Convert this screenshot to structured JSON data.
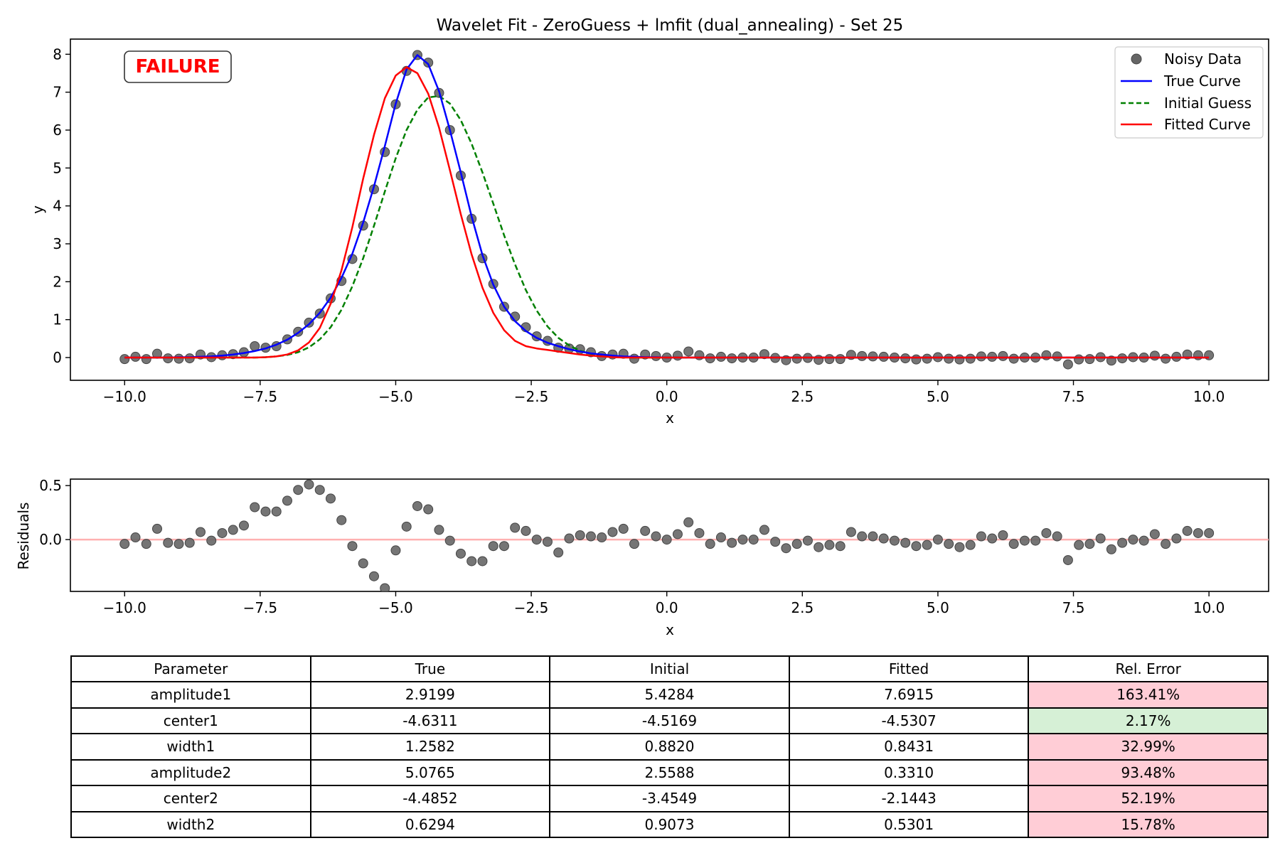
{
  "title": "Wavelet Fit - ZeroGuess + lmfit (dual_annealing) - Set 25",
  "badge": "FAILURE",
  "colors": {
    "noisy": "#666666",
    "true": "#0000ff",
    "initial": "#008000",
    "fitted": "#ff0000",
    "badge": "#ff0000",
    "zero_line": "#ffb0b0"
  },
  "legend": [
    "Noisy Data",
    "True Curve",
    "Initial Guess",
    "Fitted Curve"
  ],
  "chart_data": [
    {
      "type": "line",
      "title": "Wavelet Fit - ZeroGuess + lmfit (dual_annealing) - Set 25",
      "xlabel": "x",
      "ylabel": "y",
      "xlim": [
        -11,
        11.1
      ],
      "ylim": [
        -0.6,
        8.4
      ],
      "xticks": [
        -10,
        -7.5,
        -5,
        -2.5,
        0,
        2.5,
        5,
        7.5,
        10
      ],
      "xtick_labels": [
        "−10.0",
        "−7.5",
        "−5.0",
        "−2.5",
        "0.0",
        "2.5",
        "5.0",
        "7.5",
        "10.0"
      ],
      "yticks": [
        0,
        1,
        2,
        3,
        4,
        5,
        6,
        7,
        8
      ],
      "ytick_labels": [
        "0",
        "1",
        "2",
        "3",
        "4",
        "5",
        "6",
        "7",
        "8"
      ],
      "legend_position": "top-right",
      "grid": false,
      "x_range": [
        -10,
        10
      ],
      "n_points": 101,
      "series": [
        {
          "name": "Noisy Data",
          "style": "markers",
          "y": [
            -0.04,
            0.02,
            -0.04,
            0.1,
            -0.02,
            -0.03,
            -0.02,
            0.08,
            0.01,
            0.06,
            0.09,
            0.14,
            0.3,
            0.26,
            0.3,
            0.48,
            0.68,
            0.92,
            1.16,
            1.56,
            2.02,
            2.6,
            3.48,
            4.44,
            5.42,
            6.68,
            7.56,
            7.98,
            7.78,
            6.98,
            6.0,
            4.8,
            3.66,
            2.62,
            1.94,
            1.34,
            1.08,
            0.8,
            0.56,
            0.44,
            0.26,
            0.24,
            0.22,
            0.14,
            0.04,
            0.08,
            0.1,
            -0.03,
            0.08,
            0.04,
            0.0,
            0.05,
            0.16,
            0.06,
            -0.02,
            0.02,
            -0.02,
            0.0,
            0.0,
            0.09,
            -0.01,
            -0.07,
            -0.03,
            -0.01,
            -0.06,
            -0.04,
            -0.04,
            0.07,
            0.04,
            0.03,
            0.02,
            0.0,
            -0.02,
            -0.05,
            -0.03,
            0.01,
            -0.03,
            -0.05,
            -0.03,
            0.03,
            0.02,
            0.04,
            -0.03,
            0.0,
            0.0,
            0.06,
            0.03,
            -0.18,
            -0.05,
            -0.04,
            0.01,
            -0.08,
            -0.02,
            0.01,
            0.0,
            0.05,
            -0.03,
            0.02,
            0.08,
            0.06,
            0.06
          ]
        },
        {
          "name": "True Curve",
          "style": "solid",
          "y": [
            0.0,
            0.0,
            0.0,
            0.0,
            0.0,
            0.01,
            0.01,
            0.02,
            0.03,
            0.05,
            0.08,
            0.12,
            0.17,
            0.24,
            0.34,
            0.47,
            0.65,
            0.88,
            1.18,
            1.58,
            2.1,
            2.74,
            3.56,
            4.52,
            5.58,
            6.7,
            7.6,
            7.98,
            7.74,
            7.02,
            6.0,
            4.88,
            3.72,
            2.7,
            1.92,
            1.34,
            0.96,
            0.7,
            0.52,
            0.39,
            0.3,
            0.22,
            0.16,
            0.11,
            0.08,
            0.05,
            0.03,
            0.02,
            0.01,
            0.01,
            0.0,
            0.0,
            0.0,
            0.0,
            0.0,
            0.0,
            0.0,
            0.0,
            0.0,
            0.0,
            0.0,
            0.0,
            0.0,
            0.0,
            0.0,
            0.0,
            0.0,
            0.0,
            0.0,
            0.0,
            0.0,
            0.0,
            0.0,
            0.0,
            0.0,
            0.0,
            0.0,
            0.0,
            0.0,
            0.0,
            0.0,
            0.0,
            0.0,
            0.0,
            0.0,
            0.0,
            0.0,
            0.0,
            0.0,
            0.0,
            0.0,
            0.0,
            0.0,
            0.0,
            0.0,
            0.0,
            0.0,
            0.0,
            0.0,
            0.0,
            0.0
          ]
        },
        {
          "name": "Initial Guess",
          "style": "dashed",
          "y": [
            0.0,
            0.0,
            0.0,
            0.0,
            0.0,
            0.0,
            0.0,
            0.0,
            0.0,
            0.0,
            0.0,
            0.0,
            0.0,
            0.01,
            0.03,
            0.07,
            0.14,
            0.27,
            0.48,
            0.8,
            1.26,
            1.88,
            2.62,
            3.48,
            4.38,
            5.26,
            6.0,
            6.54,
            6.86,
            6.9,
            6.7,
            6.26,
            5.64,
            4.88,
            4.06,
            3.22,
            2.46,
            1.78,
            1.24,
            0.82,
            0.52,
            0.32,
            0.18,
            0.1,
            0.05,
            0.02,
            0.01,
            0.0,
            0.0,
            0.0,
            0.0,
            0.0,
            0.0,
            0.0,
            0.0,
            0.0,
            0.0,
            0.0,
            0.0,
            0.0,
            0.0,
            0.0,
            0.0,
            0.0,
            0.0,
            0.0,
            0.0,
            0.0,
            0.0,
            0.0,
            0.0,
            0.0,
            0.0,
            0.0,
            0.0,
            0.0,
            0.0,
            0.0,
            0.0,
            0.0,
            0.0,
            0.0,
            0.0,
            0.0,
            0.0,
            0.0,
            0.0,
            0.0,
            0.0,
            0.0,
            0.0,
            0.0,
            0.0,
            0.0,
            0.0,
            0.0,
            0.0,
            0.0,
            0.0,
            0.0,
            0.0
          ]
        },
        {
          "name": "Fitted Curve",
          "style": "solid",
          "y": [
            0.0,
            0.0,
            0.0,
            0.0,
            0.0,
            0.0,
            0.0,
            0.0,
            0.0,
            0.0,
            0.0,
            0.0,
            0.0,
            0.01,
            0.03,
            0.08,
            0.19,
            0.4,
            0.78,
            1.42,
            2.3,
            3.44,
            4.72,
            5.88,
            6.84,
            7.44,
            7.66,
            7.5,
            6.96,
            6.06,
            4.94,
            3.78,
            2.72,
            1.84,
            1.18,
            0.72,
            0.44,
            0.3,
            0.24,
            0.2,
            0.16,
            0.12,
            0.08,
            0.05,
            0.03,
            0.01,
            0.0,
            0.0,
            0.0,
            0.0,
            0.0,
            0.0,
            0.0,
            0.0,
            0.0,
            0.0,
            0.0,
            0.0,
            0.0,
            0.0,
            0.0,
            0.0,
            0.0,
            0.0,
            0.0,
            0.0,
            0.0,
            0.0,
            0.0,
            0.0,
            0.0,
            0.0,
            0.0,
            0.0,
            0.0,
            0.0,
            0.0,
            0.0,
            0.0,
            0.0,
            0.0,
            0.0,
            0.0,
            0.0,
            0.0,
            0.0,
            0.0,
            0.0,
            0.0,
            0.0,
            0.0,
            0.0,
            0.0,
            0.0,
            0.0,
            0.0,
            0.0,
            0.0,
            0.0,
            0.0,
            0.0
          ]
        }
      ]
    },
    {
      "type": "scatter",
      "xlabel": "x",
      "ylabel": "Residuals",
      "xlim": [
        -11,
        11.1
      ],
      "ylim": [
        -0.48,
        0.56
      ],
      "xticks": [
        -10,
        -7.5,
        -5,
        -2.5,
        0,
        2.5,
        5,
        7.5,
        10
      ],
      "xtick_labels": [
        "−10.0",
        "−7.5",
        "−5.0",
        "−2.5",
        "0.0",
        "2.5",
        "5.0",
        "7.5",
        "10.0"
      ],
      "yticks": [
        0,
        0.5
      ],
      "ytick_labels": [
        "0.0",
        "0.5"
      ],
      "hline": 0,
      "x_range": [
        -10,
        10
      ],
      "n_points": 101,
      "series": [
        {
          "name": "Residuals",
          "y": [
            -0.04,
            0.02,
            -0.04,
            0.1,
            -0.03,
            -0.04,
            -0.03,
            0.07,
            -0.01,
            0.06,
            0.09,
            0.13,
            0.3,
            0.26,
            0.26,
            0.36,
            0.46,
            0.51,
            0.46,
            0.38,
            0.18,
            -0.06,
            -0.22,
            -0.34,
            -0.45,
            -0.1,
            0.12,
            0.31,
            0.28,
            0.09,
            -0.01,
            -0.13,
            -0.2,
            -0.2,
            -0.06,
            -0.06,
            0.11,
            0.08,
            0.0,
            -0.02,
            -0.12,
            0.01,
            0.04,
            0.03,
            0.02,
            0.07,
            0.1,
            -0.04,
            0.08,
            0.03,
            0.0,
            0.05,
            0.16,
            0.06,
            -0.04,
            0.02,
            -0.03,
            0.0,
            0.0,
            0.09,
            -0.02,
            -0.08,
            -0.04,
            -0.01,
            -0.07,
            -0.05,
            -0.06,
            0.07,
            0.03,
            0.03,
            0.01,
            -0.01,
            -0.03,
            -0.06,
            -0.05,
            0.0,
            -0.04,
            -0.07,
            -0.05,
            0.03,
            0.01,
            0.04,
            -0.04,
            -0.01,
            -0.01,
            0.06,
            0.03,
            -0.19,
            -0.05,
            -0.04,
            0.01,
            -0.09,
            -0.03,
            0.0,
            -0.01,
            0.05,
            -0.04,
            0.01,
            0.08,
            0.06,
            0.06
          ]
        }
      ]
    }
  ],
  "table": {
    "headers": [
      "Parameter",
      "True",
      "Initial",
      "Fitted",
      "Rel. Error"
    ],
    "rows": [
      {
        "param": "amplitude1",
        "true": "2.9199",
        "initial": "5.4284",
        "fitted": "7.6915",
        "error": "163.41%",
        "status": "bad"
      },
      {
        "param": "center1",
        "true": "-4.6311",
        "initial": "-4.5169",
        "fitted": "-4.5307",
        "error": "2.17%",
        "status": "good"
      },
      {
        "param": "width1",
        "true": "1.2582",
        "initial": "0.8820",
        "fitted": "0.8431",
        "error": "32.99%",
        "status": "bad"
      },
      {
        "param": "amplitude2",
        "true": "5.0765",
        "initial": "2.5588",
        "fitted": "0.3310",
        "error": "93.48%",
        "status": "bad"
      },
      {
        "param": "center2",
        "true": "-4.4852",
        "initial": "-3.4549",
        "fitted": "-2.1443",
        "error": "52.19%",
        "status": "bad"
      },
      {
        "param": "width2",
        "true": "0.6294",
        "initial": "0.9073",
        "fitted": "0.5301",
        "error": "15.78%",
        "status": "bad"
      }
    ]
  }
}
